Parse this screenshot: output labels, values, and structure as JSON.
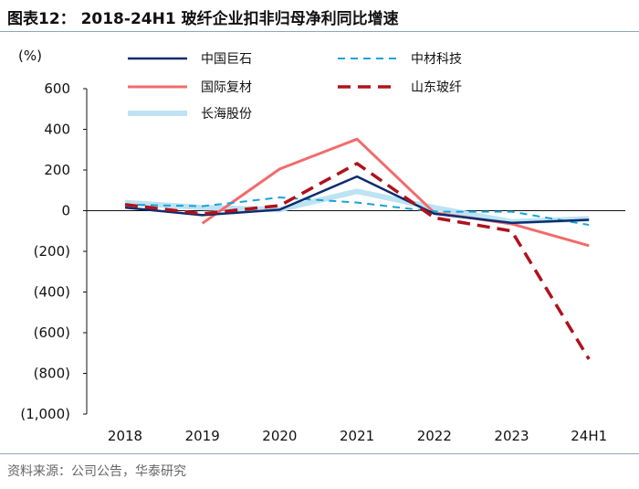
{
  "title": "图表12：  2018-24H1 玻纤企业扣非归母净利同比增速",
  "source": "资料来源：公司公告，华泰研究",
  "chart_data": {
    "type": "line",
    "title": "2018-24H1 玻纤企业扣非归母净利同比增速",
    "ylabel": "(%)",
    "xlabel": "",
    "ylim": [
      -1000,
      600
    ],
    "yticks": [
      600,
      400,
      200,
      0,
      -200,
      -400,
      -600,
      -800,
      -1000
    ],
    "ytick_labels": [
      "600",
      "400",
      "200",
      "0",
      "(200)",
      "(400)",
      "(600)",
      "(800)",
      "(1,000)"
    ],
    "categories": [
      "2018",
      "2019",
      "2020",
      "2021",
      "2022",
      "2023",
      "24H1"
    ],
    "legend_position": "top",
    "series": [
      {
        "name": "中国巨石",
        "color": "#0d2c6c",
        "style": "solid",
        "width": 2.5,
        "values": [
          15,
          -22,
          5,
          168,
          -15,
          -60,
          -45
        ]
      },
      {
        "name": "中材科技",
        "color": "#1aa3d9",
        "style": "dashed",
        "width": 2,
        "values": [
          30,
          22,
          65,
          40,
          -5,
          -5,
          -70
        ]
      },
      {
        "name": "国际复材",
        "color": "#f26b6b",
        "style": "solid",
        "width": 3,
        "values": [
          null,
          -62,
          205,
          352,
          -10,
          -65,
          -172
        ]
      },
      {
        "name": "山东玻纤",
        "color": "#b0121b",
        "style": "dashed",
        "width": 3.5,
        "values": [
          30,
          -15,
          25,
          232,
          -35,
          -100,
          -730
        ]
      },
      {
        "name": "长海股份",
        "color": "#bde3f3",
        "style": "solid",
        "width": 6,
        "values": [
          40,
          15,
          5,
          95,
          15,
          -55,
          -40
        ]
      }
    ]
  }
}
